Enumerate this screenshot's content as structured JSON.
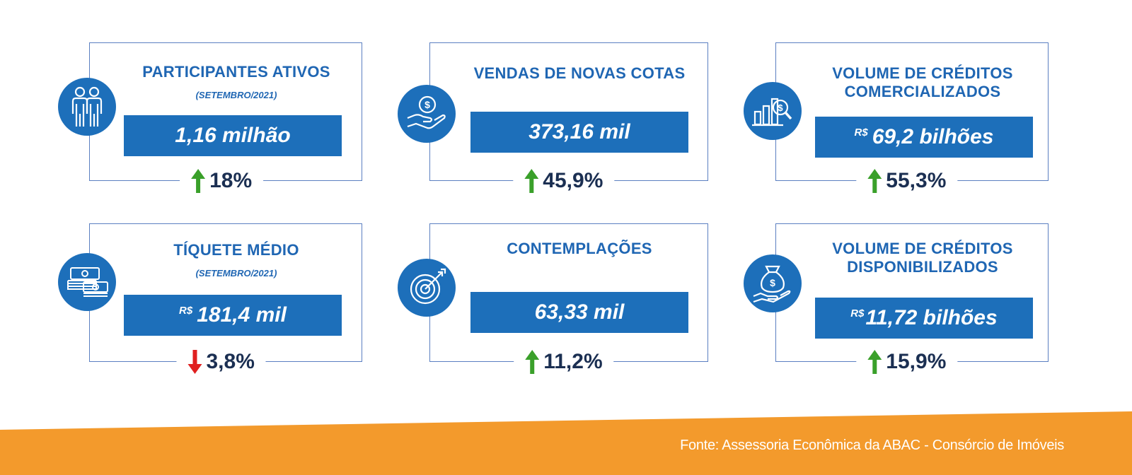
{
  "cards": [
    {
      "title_lines": [
        "PARTICIPANTES ATIVOS"
      ],
      "subtitle": "(SETEMBRO/2021)",
      "currency": "",
      "value": "1,16 milhão",
      "change": "18%",
      "direction": "up",
      "icon": "people-icon"
    },
    {
      "title_lines": [
        "VENDAS DE NOVAS COTAS"
      ],
      "subtitle": "",
      "currency": "",
      "value": "373,16 mil",
      "change": "45,9%",
      "direction": "up",
      "icon": "hand-coin-icon"
    },
    {
      "title_lines": [
        "VOLUME DE CRÉDITOS",
        "COMERCIALIZADOS"
      ],
      "subtitle": "",
      "currency": "R$",
      "value": "69,2 bilhões",
      "change": "55,3%",
      "direction": "up",
      "icon": "chart-magnifier-icon"
    },
    {
      "title_lines": [
        "TÍQUETE MÉDIO"
      ],
      "subtitle": "(SETEMBRO/2021)",
      "currency": "R$",
      "value": "181,4 mil",
      "change": "3,8%",
      "direction": "down",
      "icon": "cash-stack-icon"
    },
    {
      "title_lines": [
        "CONTEMPLAÇÕES"
      ],
      "subtitle": "",
      "currency": "",
      "value": "63,33 mil",
      "change": "11,2%",
      "direction": "up",
      "icon": "target-icon"
    },
    {
      "title_lines": [
        "VOLUME DE CRÉDITOS",
        "DISPONIBILIZADOS"
      ],
      "subtitle": "",
      "currency": "R$",
      "value": "11,72 bilhões",
      "change": "15,9%",
      "direction": "up",
      "icon": "money-bag-hand-icon"
    }
  ],
  "footer": {
    "source": "Fonte: Assessoria Econômica da ABAC - Consórcio de Imóveis"
  },
  "colors": {
    "primary_blue": "#1d6fba",
    "title_blue": "#1f66b3",
    "up_green": "#3aa02a",
    "down_red": "#e02020",
    "orange": "#f39a2c",
    "dark_text": "#1b2f52"
  }
}
